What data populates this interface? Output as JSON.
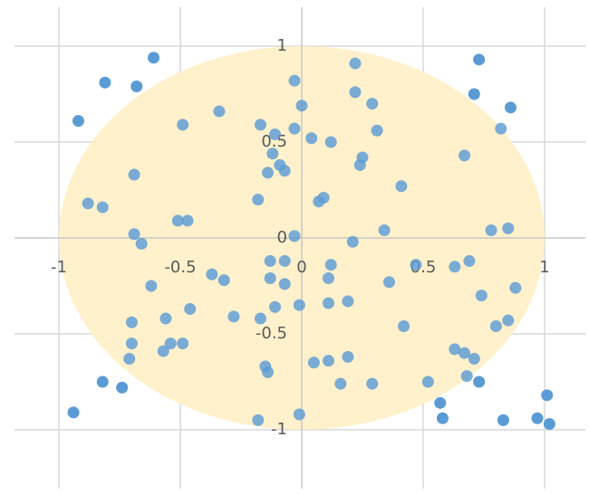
{
  "chart_data": {
    "type": "scatter",
    "title": "",
    "xlabel": "",
    "ylabel": "",
    "xlim": [
      -1,
      1
    ],
    "ylim": [
      -1,
      1
    ],
    "grid": true,
    "legend": "none",
    "x_ticks": [
      "-1",
      "-0.5",
      "0",
      "0.5",
      "1"
    ],
    "y_ticks": [
      "1",
      "0.5",
      "0",
      "-0.5",
      "-1"
    ],
    "x_tick_values": [
      -1,
      -0.5,
      0,
      0.5,
      1
    ],
    "y_tick_values": [
      1,
      0.5,
      0,
      -0.5,
      -1
    ],
    "circle": {
      "center": [
        0,
        0
      ],
      "radius": 1,
      "fill_color": "#FFF0C8"
    },
    "series": [
      {
        "color": "#5B9BD5",
        "points": [
          [
            -0.92,
            0.61
          ],
          [
            -0.81,
            0.81
          ],
          [
            -0.68,
            0.79
          ],
          [
            -0.61,
            0.94
          ],
          [
            -0.49,
            0.59
          ],
          [
            -0.34,
            0.66
          ],
          [
            -0.17,
            0.59
          ],
          [
            -0.11,
            0.54
          ],
          [
            -0.12,
            0.44
          ],
          [
            -0.09,
            0.38
          ],
          [
            -0.07,
            0.35
          ],
          [
            -0.14,
            0.34
          ],
          [
            -0.69,
            0.33
          ],
          [
            -0.18,
            0.2
          ],
          [
            -0.88,
            0.18
          ],
          [
            -0.82,
            0.16
          ],
          [
            -0.51,
            0.09
          ],
          [
            -0.47,
            0.09
          ],
          [
            -0.69,
            0.02
          ],
          [
            -0.66,
            -0.03
          ],
          [
            -0.03,
            0.82
          ],
          [
            0.0,
            0.69
          ],
          [
            0.22,
            0.91
          ],
          [
            0.22,
            0.76
          ],
          [
            0.29,
            0.7
          ],
          [
            0.31,
            0.56
          ],
          [
            0.04,
            0.52
          ],
          [
            0.12,
            0.5
          ],
          [
            -0.03,
            0.57
          ],
          [
            0.25,
            0.42
          ],
          [
            0.24,
            0.38
          ],
          [
            0.41,
            0.27
          ],
          [
            0.09,
            0.21
          ],
          [
            0.07,
            0.19
          ],
          [
            0.73,
            0.93
          ],
          [
            0.71,
            0.75
          ],
          [
            0.86,
            0.68
          ],
          [
            0.82,
            0.57
          ],
          [
            0.67,
            0.43
          ],
          [
            0.34,
            0.04
          ],
          [
            0.21,
            -0.02
          ],
          [
            -0.03,
            0.01
          ],
          [
            0.78,
            0.04
          ],
          [
            0.85,
            0.05
          ],
          [
            -0.13,
            -0.12
          ],
          [
            -0.07,
            -0.12
          ],
          [
            0.12,
            -0.14
          ],
          [
            0.47,
            -0.14
          ],
          [
            0.63,
            -0.15
          ],
          [
            0.69,
            -0.12
          ],
          [
            -0.37,
            -0.19
          ],
          [
            -0.32,
            -0.22
          ],
          [
            -0.13,
            -0.21
          ],
          [
            -0.07,
            -0.24
          ],
          [
            0.11,
            -0.21
          ],
          [
            0.36,
            -0.23
          ],
          [
            -0.62,
            -0.25
          ],
          [
            0.88,
            -0.26
          ],
          [
            0.74,
            -0.3
          ],
          [
            -0.11,
            -0.36
          ],
          [
            -0.01,
            -0.35
          ],
          [
            0.11,
            -0.34
          ],
          [
            0.19,
            -0.33
          ],
          [
            -0.46,
            -0.37
          ],
          [
            -0.56,
            -0.42
          ],
          [
            -0.28,
            -0.41
          ],
          [
            -0.17,
            -0.42
          ],
          [
            -0.7,
            -0.44
          ],
          [
            0.42,
            -0.46
          ],
          [
            0.8,
            -0.46
          ],
          [
            0.85,
            -0.43
          ],
          [
            -0.7,
            -0.55
          ],
          [
            -0.54,
            -0.55
          ],
          [
            -0.49,
            -0.55
          ],
          [
            -0.57,
            -0.59
          ],
          [
            -0.71,
            -0.63
          ],
          [
            0.63,
            -0.58
          ],
          [
            0.67,
            -0.6
          ],
          [
            0.71,
            -0.63
          ],
          [
            0.05,
            -0.65
          ],
          [
            0.11,
            -0.64
          ],
          [
            0.19,
            -0.62
          ],
          [
            -0.15,
            -0.67
          ],
          [
            -0.14,
            -0.7
          ],
          [
            0.68,
            -0.72
          ],
          [
            0.73,
            -0.75
          ],
          [
            0.52,
            -0.75
          ],
          [
            0.16,
            -0.76
          ],
          [
            0.29,
            -0.76
          ],
          [
            -0.82,
            -0.75
          ],
          [
            -0.74,
            -0.78
          ],
          [
            -0.94,
            -0.91
          ],
          [
            0.57,
            -0.86
          ],
          [
            0.58,
            -0.94
          ],
          [
            1.01,
            -0.82
          ],
          [
            -0.18,
            -0.95
          ],
          [
            -0.01,
            -0.92
          ],
          [
            0.83,
            -0.95
          ],
          [
            0.97,
            -0.94
          ],
          [
            1.02,
            -0.97
          ]
        ]
      }
    ]
  }
}
